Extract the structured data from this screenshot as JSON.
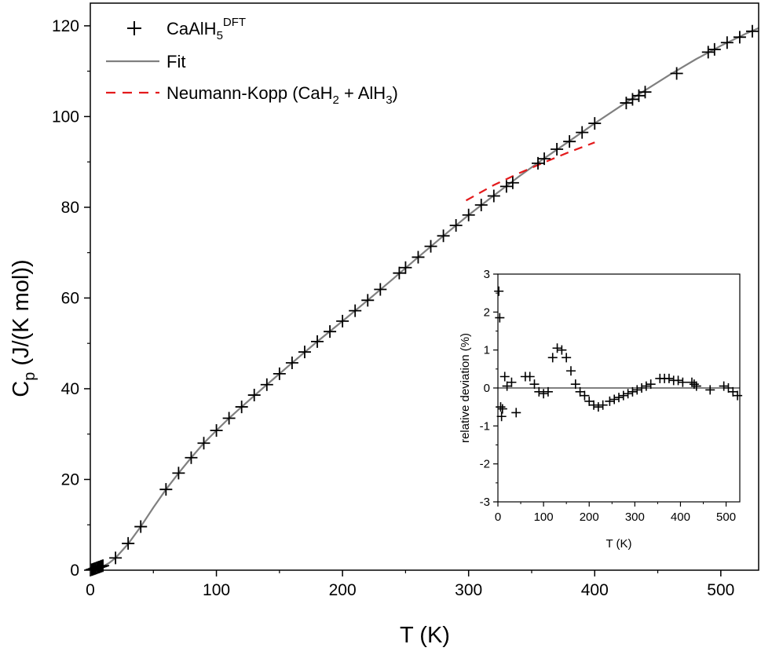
{
  "chart_data": [
    {
      "type": "scatter",
      "xlabel": "T (K)",
      "ylabel_main": "C",
      "ylabel_sub": "p",
      "ylabel_rest": "(J/(K mol))",
      "xlim": [
        0,
        530
      ],
      "ylim": [
        0,
        125
      ],
      "xticks": [
        "0",
        "100",
        "200",
        "300",
        "400",
        "500"
      ],
      "yticks": [
        "0",
        "20",
        "40",
        "60",
        "80",
        "100",
        "120"
      ],
      "xtick_values": [
        0,
        100,
        200,
        300,
        400,
        500
      ],
      "ytick_values": [
        0,
        20,
        40,
        60,
        80,
        100,
        120
      ],
      "legend": [
        {
          "label_main": "CaAlH",
          "label_sub": "5",
          "label_sup": "DFT",
          "marker": "plus"
        },
        {
          "label_main": "Fit",
          "marker": "line"
        },
        {
          "label_pre": "Neumann-Kopp (CaH",
          "label_sub1": "2",
          "label_mid": " + AlH",
          "label_sub2": "3",
          "label_post": ")",
          "marker": "dashed"
        }
      ],
      "legend_position": "top-left",
      "colors": {
        "data": "#000000",
        "fit": "#808080",
        "neumann_kopp": "#e31a1c"
      },
      "series": [
        {
          "name": "CaAlH5 DFT",
          "style": "plus",
          "x": [
            1,
            2,
            3,
            4,
            5,
            6,
            7,
            8,
            9,
            10,
            20,
            30,
            40,
            60,
            70,
            80,
            90,
            100,
            110,
            120,
            130,
            140,
            150,
            160,
            170,
            180,
            190,
            200,
            210,
            220,
            230,
            245,
            250,
            260,
            270,
            280,
            290,
            300,
            310,
            320,
            330,
            335,
            355,
            360,
            370,
            380,
            390,
            400,
            425,
            430,
            435,
            440,
            465,
            490,
            495,
            505,
            515,
            525
          ],
          "y": [
            0.1,
            0.2,
            0.3,
            0.4,
            0.5,
            0.6,
            0.7,
            0.8,
            0.9,
            1.0,
            2.7,
            5.9,
            9.6,
            17.8,
            21.4,
            24.8,
            28.0,
            30.8,
            33.5,
            36.0,
            38.6,
            40.9,
            43.3,
            45.7,
            48.1,
            50.4,
            52.6,
            54.9,
            57.2,
            59.5,
            61.9,
            65.5,
            66.7,
            69.0,
            71.4,
            73.7,
            76.0,
            78.3,
            80.5,
            82.5,
            84.6,
            85.4,
            89.7,
            90.7,
            92.8,
            94.5,
            96.5,
            98.5,
            103.0,
            103.8,
            104.6,
            105.4,
            109.5,
            114.2,
            114.8,
            116.3,
            117.5,
            118.8
          ]
        },
        {
          "name": "Fit",
          "style": "line",
          "x": [
            0,
            5,
            10,
            15,
            20,
            30,
            40,
            50,
            60,
            70,
            80,
            90,
            100,
            110,
            120,
            140,
            160,
            180,
            200,
            220,
            240,
            260,
            280,
            300,
            320,
            340,
            360,
            380,
            400,
            420,
            440,
            460,
            480,
            500,
            520,
            530
          ],
          "y": [
            0,
            0.3,
            0.8,
            1.6,
            2.7,
            5.8,
            9.6,
            13.8,
            17.8,
            21.4,
            24.8,
            28.0,
            30.8,
            33.5,
            36.0,
            40.9,
            45.7,
            50.4,
            54.9,
            59.5,
            64.2,
            69.0,
            73.7,
            78.3,
            82.6,
            86.8,
            90.8,
            94.6,
            98.5,
            102.2,
            105.8,
            109.3,
            112.6,
            115.6,
            118.3,
            119.5
          ]
        },
        {
          "name": "Neumann-Kopp (CaH2 + AlH3)",
          "style": "dashed",
          "x": [
            298,
            320,
            340,
            360,
            380,
            400
          ],
          "y": [
            81.5,
            84.9,
            87.5,
            89.9,
            92.2,
            94.3
          ]
        }
      ]
    },
    {
      "type": "scatter",
      "title": "inset",
      "xlabel": "T (K)",
      "ylabel": "relative deviation (%)",
      "xlim": [
        0,
        530
      ],
      "ylim": [
        -3,
        3
      ],
      "xticks": [
        "0",
        "100",
        "200",
        "300",
        "400",
        "500"
      ],
      "yticks": [
        "-3",
        "-2",
        "-1",
        "0",
        "1",
        "2",
        "3"
      ],
      "xtick_values": [
        0,
        100,
        200,
        300,
        400,
        500
      ],
      "ytick_values": [
        -3,
        -2,
        -1,
        0,
        1,
        2,
        3
      ],
      "zero_line": true,
      "series": [
        {
          "name": "relative deviation",
          "style": "plus",
          "x": [
            2,
            4,
            6,
            8,
            10,
            15,
            20,
            30,
            40,
            60,
            70,
            80,
            90,
            100,
            110,
            120,
            130,
            140,
            150,
            160,
            170,
            180,
            190,
            200,
            210,
            220,
            230,
            245,
            255,
            265,
            275,
            285,
            295,
            305,
            315,
            325,
            335,
            355,
            365,
            375,
            385,
            395,
            405,
            425,
            430,
            435,
            465,
            495,
            505,
            515,
            525
          ],
          "y": [
            2.55,
            1.85,
            -0.5,
            -0.75,
            -0.55,
            0.3,
            0.05,
            0.15,
            -0.65,
            0.3,
            0.3,
            0.1,
            -0.1,
            -0.15,
            -0.1,
            0.8,
            1.05,
            1.0,
            0.8,
            0.45,
            0.1,
            -0.1,
            -0.2,
            -0.35,
            -0.45,
            -0.5,
            -0.45,
            -0.35,
            -0.3,
            -0.25,
            -0.2,
            -0.15,
            -0.1,
            -0.05,
            0.0,
            0.05,
            0.1,
            0.25,
            0.25,
            0.25,
            0.2,
            0.2,
            0.15,
            0.15,
            0.1,
            0.05,
            -0.05,
            0.05,
            0.0,
            -0.1,
            -0.2
          ]
        }
      ]
    }
  ]
}
